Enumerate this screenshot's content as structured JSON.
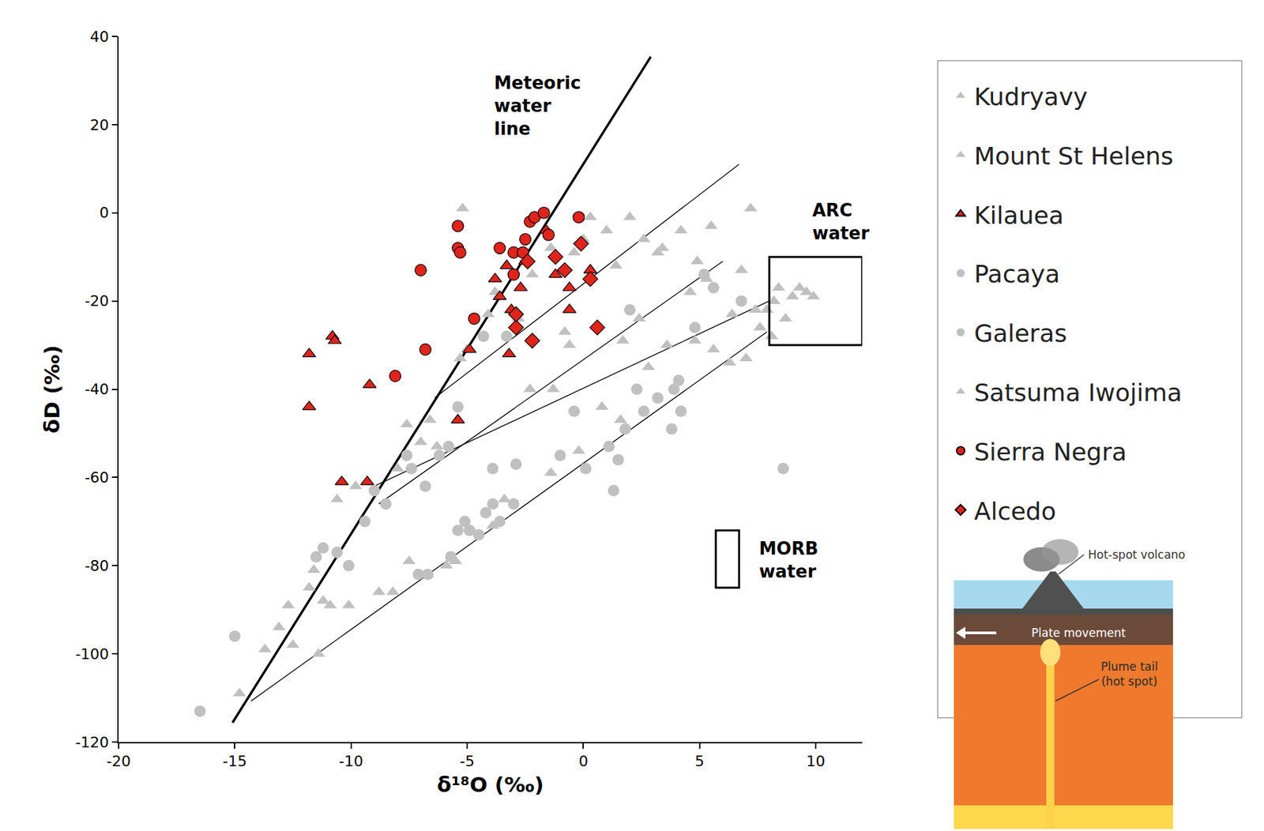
{
  "chart_data": {
    "type": "scatter",
    "x_label": "δ¹⁸O (‰)",
    "y_label": "δD (‰)",
    "xlim": [
      -20,
      12
    ],
    "ylim": [
      -120,
      40
    ],
    "xticks": [
      -20,
      -15,
      -10,
      -5,
      0,
      5,
      10
    ],
    "yticks": [
      -120,
      -100,
      -80,
      -60,
      -40,
      -20,
      0,
      20,
      40
    ],
    "grid": false,
    "legend": "right",
    "series": [
      {
        "name": "Kudryavy",
        "color": "#c0c0c0",
        "marker": "triangle-up",
        "x": [
          -14.8,
          -13.7,
          -13.1,
          -12.7,
          -12.5,
          -11.8,
          -11.6,
          -11.4,
          -11.2,
          -10.9,
          -10.1,
          -8.8,
          -8.2,
          -7.5,
          -6.7,
          -5.9,
          -5.5,
          -4.8,
          -3.9,
          -3.4,
          -10.6,
          -9.8
        ],
        "y": [
          -109,
          -99,
          -94,
          -89,
          -98,
          -85,
          -81,
          -100,
          -88,
          -89,
          -89,
          -86,
          -86,
          -79,
          -82,
          -80,
          -79,
          -72,
          -71,
          -65,
          -65,
          -62
        ]
      },
      {
        "name": "Mount St Helens",
        "color": "#c0c0c0",
        "marker": "triangle-up",
        "x": [
          -8.0,
          -7.6,
          -7.0,
          -6.6,
          -6.3,
          -5.3,
          -5.0,
          -4.1,
          -3.8,
          -2.8,
          -2.2,
          -1.4,
          -0.4,
          0.0,
          0.3,
          1.0,
          1.4,
          2.0,
          2.6,
          3.4,
          4.2,
          4.9,
          5.5,
          -2.3,
          -1.3,
          -0.8,
          -0.6,
          0.8,
          2.8,
          3.6,
          -5.2
        ],
        "y": [
          -58,
          -48,
          -52,
          -47,
          -53,
          -33,
          -31,
          -23,
          -18,
          -24,
          -14,
          -8,
          -9,
          -6,
          -1,
          -4,
          -12,
          -1,
          -6,
          -8,
          -4,
          -11,
          -3,
          -40,
          -40,
          -27,
          -30,
          -44,
          -35,
          -30,
          1
        ]
      },
      {
        "name": "Kilauea",
        "color": "#e0241b",
        "marker": "triangle-up",
        "x": [
          -11.8,
          -11.8,
          -10.8,
          -10.7,
          -9.2,
          -10.4,
          -9.3,
          -5.4,
          -3.2,
          -3.1,
          -3.3,
          -3.6,
          -2.7,
          -2.5,
          -1.6,
          -1.2,
          -0.6,
          -0.6,
          0.3,
          -3.8,
          -4.9
        ],
        "y": [
          -32,
          -44,
          -28,
          -29,
          -39,
          -61,
          -61,
          -47,
          -32,
          -22,
          -12,
          -19,
          -17,
          -11,
          -4,
          -14,
          -17,
          -22,
          -13,
          -15,
          -31
        ]
      },
      {
        "name": "Pacaya",
        "color": "#c0c0c0",
        "marker": "circle",
        "x": [
          -16.5,
          -15.0,
          -11.5,
          -11.2,
          -10.6,
          -10.1,
          -9.4,
          -9.0,
          -8.5,
          -7.6,
          -7.4,
          -6.8,
          -6.2,
          -5.4,
          -5.1,
          -4.9,
          -4.2,
          -3.9,
          -3.6,
          -3.0,
          -2.9,
          -5.7,
          -5.4,
          -4.5,
          -3.9
        ],
        "y": [
          -113,
          -96,
          -78,
          -76,
          -77,
          -80,
          -70,
          -63,
          -66,
          -55,
          -58,
          -62,
          -55,
          -44,
          -70,
          -72,
          -68,
          -58,
          -70,
          -66,
          -57,
          -78,
          -72,
          -73,
          -66
        ]
      },
      {
        "name": "Galeras",
        "color": "#c0c0c0",
        "marker": "circle",
        "x": [
          -1.0,
          0.1,
          1.3,
          1.1,
          1.5,
          1.8,
          2.3,
          2.6,
          3.2,
          3.8,
          3.9,
          4.2,
          4.8,
          5.2,
          5.6,
          6.8,
          8.6,
          -5.8,
          -4.3,
          -3.3,
          -7.1,
          -6.7,
          2.0,
          4.1,
          -0.4
        ],
        "y": [
          -55,
          -58,
          -63,
          -53,
          -56,
          -49,
          -40,
          -45,
          -42,
          -49,
          -40,
          -45,
          -26,
          -14,
          -17,
          -20,
          -58,
          -53,
          -28,
          -28,
          -82,
          -82,
          -22,
          -38,
          -45
        ]
      },
      {
        "name": "Satsuma Iwojima",
        "color": "#c0c0c0",
        "marker": "triangle-up",
        "x": [
          4.6,
          4.8,
          5.3,
          6.4,
          6.8,
          7.2,
          7.4,
          7.6,
          7.9,
          8.2,
          8.4,
          8.7,
          9.0,
          9.3,
          9.6,
          9.9,
          8.1,
          7.0,
          6.3,
          5.6,
          3.2,
          2.4,
          1.7,
          1.6,
          -0.2,
          -1.4
        ],
        "y": [
          -18,
          -29,
          -15,
          -23,
          -13,
          1,
          -22,
          -26,
          -22,
          -20,
          -17,
          -24,
          -19,
          -17,
          -18,
          -19,
          -28,
          -33,
          -34,
          -31,
          -9,
          -24,
          -29,
          -47,
          -54,
          -59
        ]
      },
      {
        "name": "Sierra Negra",
        "color": "#e0241b",
        "marker": "circle",
        "x": [
          -7.0,
          -6.8,
          -8.1,
          -5.4,
          -5.4,
          -5.3,
          -4.7,
          -3.6,
          -3.0,
          -2.6,
          -2.3,
          -2.1,
          -1.7,
          -1.5,
          -0.2,
          -2.5,
          -3.0
        ],
        "y": [
          -13,
          -31,
          -37,
          -3,
          -8,
          -9,
          -24,
          -8,
          -9,
          -9,
          -2,
          -1,
          0,
          -5,
          -1,
          -6,
          -14
        ]
      },
      {
        "name": "Alcedo",
        "color": "#e0241b",
        "marker": "diamond",
        "x": [
          -2.9,
          -2.2,
          -2.9,
          -1.2,
          -0.8,
          0.6,
          -0.1,
          0.3,
          -2.4
        ],
        "y": [
          -26,
          -29,
          -23,
          -10,
          -13,
          -26,
          -7,
          -15,
          -11
        ]
      }
    ],
    "reference_lines": {
      "meteoric": {
        "x": [
          -15.1,
          2.9
        ],
        "y": [
          -115.6,
          35.4
        ]
      },
      "mixing": [
        {
          "x": [
            -6.4,
            6.7
          ],
          "y": [
            -42,
            11
          ]
        },
        {
          "x": [
            -8.8,
            6.0
          ],
          "y": [
            -66,
            -11
          ]
        },
        {
          "x": [
            -9.0,
            8.0
          ],
          "y": [
            -62,
            -20
          ]
        },
        {
          "x": [
            -14.3,
            7.9
          ],
          "y": [
            -110.7,
            -27
          ]
        }
      ]
    },
    "boxes": [
      {
        "label": "ARC water",
        "x": [
          8,
          12
        ],
        "y": [
          -30,
          -10
        ]
      },
      {
        "label": "MORB water",
        "x": [
          5.7,
          6.7
        ],
        "y": [
          -85,
          -72
        ]
      }
    ],
    "annotations": [
      {
        "text": "Meteoric\nwater\nline",
        "x": -3.9,
        "y": 24.3
      },
      {
        "text": "ARC\nwater",
        "x": 9.8,
        "y": -2
      },
      {
        "text": "MORB\nwater",
        "x": 7.5,
        "y": -78.7
      }
    ],
    "inset_texts": {
      "volcano": "Hot-spot volcano",
      "plate": "Plate movement",
      "plume": "Plume tail\n(hot spot)"
    }
  }
}
